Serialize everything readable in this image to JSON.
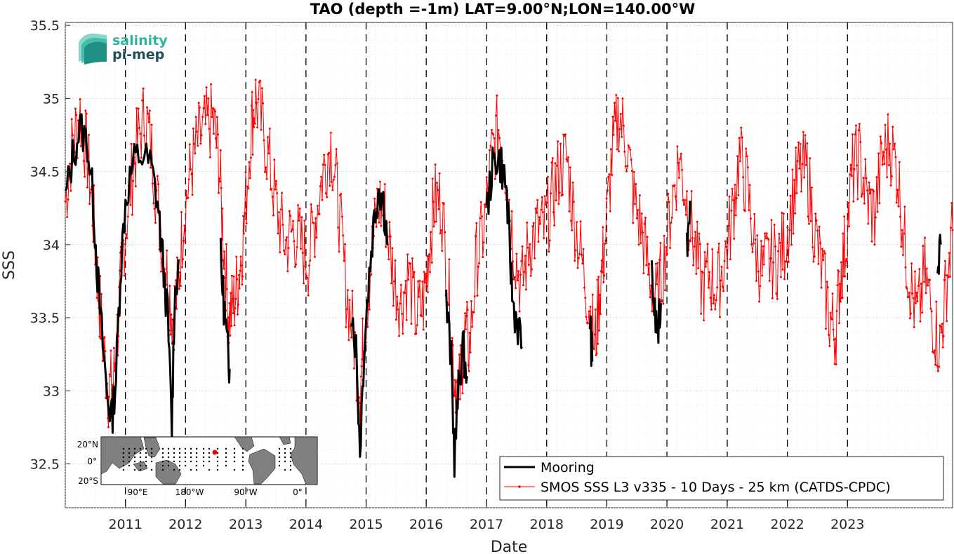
{
  "chart_data": {
    "type": "line",
    "title": "TAO (depth =-1m) LAT=9.00°N;LON=140.00°W",
    "xlabel": "Date",
    "ylabel": "SSS",
    "xlim": [
      "2010-01-01",
      "2024-09-30"
    ],
    "ylim": [
      32.2,
      35.52
    ],
    "yticks": [
      32.5,
      33,
      33.5,
      34,
      34.5,
      35,
      35.5
    ],
    "ytick_labels": [
      "32.5",
      "33",
      "33.5",
      "34",
      "34.5",
      "35",
      "35.5"
    ],
    "xticks": [
      "2011-01-01",
      "2012-01-01",
      "2013-01-01",
      "2014-01-01",
      "2015-01-01",
      "2016-01-01",
      "2017-01-01",
      "2018-01-01",
      "2019-01-01",
      "2020-01-01",
      "2021-01-01",
      "2022-01-01",
      "2023-01-01"
    ],
    "xtick_labels": [
      "2011",
      "2012",
      "2013",
      "2014",
      "2015",
      "2016",
      "2017",
      "2018",
      "2019",
      "2020",
      "2021",
      "2022",
      "2023"
    ],
    "year_dashed_lines": [
      "2011-01-01",
      "2012-01-01",
      "2013-01-01",
      "2014-01-01",
      "2015-01-01",
      "2016-01-01",
      "2017-01-01",
      "2018-01-01",
      "2019-01-01",
      "2020-01-01",
      "2021-01-01",
      "2022-01-01",
      "2023-01-01"
    ],
    "grid": true,
    "legend_position": "bottom-right",
    "series": [
      {
        "name": "Mooring",
        "color": "#000000",
        "style": "thick-line",
        "segments": [
          [
            [
              "2010-01-01",
              34.3
            ],
            [
              "2010-02-15",
              34.6
            ],
            [
              "2010-04-01",
              34.8
            ],
            [
              "2010-05-15",
              34.7
            ],
            [
              "2010-06-20",
              34.3
            ],
            [
              "2010-07-15",
              33.8
            ],
            [
              "2010-08-10",
              33.4
            ],
            [
              "2010-09-10",
              33.0
            ],
            [
              "2010-10-10",
              32.8
            ],
            [
              "2010-11-05",
              33.1
            ],
            [
              "2010-12-01",
              33.8
            ],
            [
              "2011-01-01",
              34.3
            ],
            [
              "2011-02-15",
              34.55
            ],
            [
              "2011-04-01",
              34.62
            ],
            [
              "2011-06-01",
              34.55
            ],
            [
              "2011-07-15",
              34.3
            ],
            [
              "2011-08-15",
              33.9
            ],
            [
              "2011-09-15",
              33.5
            ],
            [
              "2011-10-10",
              32.75
            ],
            [
              "2011-10-25",
              33.6
            ],
            [
              "2011-11-20",
              33.9
            ]
          ],
          [
            [
              "2012-08-01",
              33.9
            ],
            [
              "2012-08-20",
              33.6
            ],
            [
              "2012-09-10",
              33.3
            ],
            [
              "2012-09-25",
              33.15
            ]
          ],
          [
            [
              "2014-10-01",
              33.6
            ],
            [
              "2014-11-01",
              33.3
            ],
            [
              "2014-11-25",
              32.6
            ],
            [
              "2014-12-20",
              33.3
            ],
            [
              "2015-01-20",
              33.8
            ],
            [
              "2015-02-20",
              34.2
            ],
            [
              "2015-03-20",
              34.4
            ],
            [
              "2015-04-15",
              34.3
            ],
            [
              "2015-05-15",
              34.0
            ]
          ],
          [
            [
              "2016-05-01",
              33.6
            ],
            [
              "2016-06-01",
              33.2
            ],
            [
              "2016-06-20",
              32.55
            ],
            [
              "2016-07-15",
              33.0
            ],
            [
              "2016-08-10",
              33.3
            ],
            [
              "2016-09-05",
              33.1
            ]
          ],
          [
            [
              "2017-01-01",
              34.2
            ],
            [
              "2017-02-01",
              34.5
            ],
            [
              "2017-03-01",
              34.6
            ],
            [
              "2017-04-01",
              34.55
            ],
            [
              "2017-05-01",
              34.4
            ],
            [
              "2017-05-20",
              34.0
            ],
            [
              "2017-06-10",
              33.6
            ],
            [
              "2017-07-10",
              33.45
            ],
            [
              "2017-08-05",
              33.3
            ]
          ],
          [
            [
              "2018-09-20",
              33.5
            ],
            [
              "2018-10-05",
              33.2
            ]
          ],
          [
            [
              "2019-10-01",
              33.8
            ],
            [
              "2019-10-20",
              33.5
            ],
            [
              "2019-11-10",
              33.4
            ],
            [
              "2019-11-25",
              33.6
            ]
          ],
          [
            [
              "2020-05-01",
              34.0
            ],
            [
              "2020-05-20",
              34.3
            ]
          ],
          [
            [
              "2024-07-01",
              33.9
            ],
            [
              "2024-07-20",
              34.0
            ]
          ]
        ]
      },
      {
        "name": "SMOS SSS L3 v335 - 10 Days - 25 km (CATDS-CPDC)",
        "color": "#ff0000",
        "style": "thin-line-dots",
        "points": [
          [
            "2010-01-01",
            34.3
          ],
          [
            "2010-02-15",
            34.7
          ],
          [
            "2010-04-01",
            34.9
          ],
          [
            "2010-05-15",
            34.6
          ],
          [
            "2010-06-20",
            34.2
          ],
          [
            "2010-07-20",
            33.7
          ],
          [
            "2010-08-20",
            33.3
          ],
          [
            "2010-09-20",
            33.0
          ],
          [
            "2010-10-20",
            33.05
          ],
          [
            "2010-11-20",
            33.5
          ],
          [
            "2010-12-20",
            34.0
          ],
          [
            "2011-02-01",
            34.4
          ],
          [
            "2011-03-15",
            34.7
          ],
          [
            "2011-05-01",
            34.9
          ],
          [
            "2011-06-15",
            34.6
          ],
          [
            "2011-08-01",
            34.1
          ],
          [
            "2011-09-10",
            33.8
          ],
          [
            "2011-10-15",
            33.5
          ],
          [
            "2011-11-15",
            33.7
          ],
          [
            "2011-12-20",
            34.2
          ],
          [
            "2012-02-01",
            34.5
          ],
          [
            "2012-03-15",
            34.7
          ],
          [
            "2012-05-01",
            34.8
          ],
          [
            "2012-06-15",
            34.85
          ],
          [
            "2012-07-20",
            34.6
          ],
          [
            "2012-08-20",
            34.0
          ],
          [
            "2012-09-20",
            33.5
          ],
          [
            "2012-10-20",
            33.6
          ],
          [
            "2012-11-20",
            33.8
          ],
          [
            "2012-12-20",
            34.1
          ],
          [
            "2013-02-01",
            34.8
          ],
          [
            "2013-03-01",
            35.0
          ],
          [
            "2013-04-15",
            34.8
          ],
          [
            "2013-06-01",
            34.5
          ],
          [
            "2013-07-15",
            34.2
          ],
          [
            "2013-09-01",
            34.0
          ],
          [
            "2013-10-15",
            34.1
          ],
          [
            "2013-12-01",
            34.0
          ],
          [
            "2014-01-15",
            33.9
          ],
          [
            "2014-03-01",
            34.2
          ],
          [
            "2014-04-15",
            34.5
          ],
          [
            "2014-06-01",
            34.7
          ],
          [
            "2014-07-15",
            34.3
          ],
          [
            "2014-09-01",
            33.7
          ],
          [
            "2014-10-15",
            33.4
          ],
          [
            "2014-11-25",
            33.0
          ],
          [
            "2014-12-20",
            33.4
          ],
          [
            "2015-02-01",
            33.9
          ],
          [
            "2015-03-15",
            34.3
          ],
          [
            "2015-05-01",
            34.2
          ],
          [
            "2015-06-15",
            33.8
          ],
          [
            "2015-08-01",
            33.6
          ],
          [
            "2015-09-15",
            33.8
          ],
          [
            "2015-11-01",
            33.5
          ],
          [
            "2015-12-15",
            33.6
          ],
          [
            "2016-01-20",
            34.0
          ],
          [
            "2016-02-20",
            34.3
          ],
          [
            "2016-04-01",
            34.3
          ],
          [
            "2016-05-15",
            33.7
          ],
          [
            "2016-06-20",
            33.1
          ],
          [
            "2016-07-20",
            33.0
          ],
          [
            "2016-08-20",
            33.4
          ],
          [
            "2016-09-20",
            33.3
          ],
          [
            "2016-11-01",
            33.9
          ],
          [
            "2016-12-15",
            34.1
          ],
          [
            "2017-02-01",
            34.6
          ],
          [
            "2017-03-15",
            34.8
          ],
          [
            "2017-05-01",
            34.5
          ],
          [
            "2017-06-15",
            34.0
          ],
          [
            "2017-08-01",
            33.7
          ],
          [
            "2017-09-15",
            34.0
          ],
          [
            "2017-11-01",
            34.1
          ],
          [
            "2017-12-15",
            34.1
          ],
          [
            "2018-02-01",
            34.3
          ],
          [
            "2018-03-15",
            34.5
          ],
          [
            "2018-05-01",
            34.6
          ],
          [
            "2018-06-15",
            34.2
          ],
          [
            "2018-08-01",
            33.9
          ],
          [
            "2018-09-15",
            33.6
          ],
          [
            "2018-10-20",
            33.3
          ],
          [
            "2018-11-20",
            33.7
          ],
          [
            "2018-12-20",
            34.0
          ],
          [
            "2019-02-01",
            34.6
          ],
          [
            "2019-03-15",
            34.9
          ],
          [
            "2019-05-01",
            34.7
          ],
          [
            "2019-06-15",
            34.3
          ],
          [
            "2019-08-01",
            34.1
          ],
          [
            "2019-09-15",
            33.8
          ],
          [
            "2019-11-01",
            33.6
          ],
          [
            "2019-12-15",
            33.9
          ],
          [
            "2020-02-01",
            34.3
          ],
          [
            "2020-03-15",
            34.6
          ],
          [
            "2020-05-01",
            34.3
          ],
          [
            "2020-06-15",
            34.0
          ],
          [
            "2020-08-01",
            33.7
          ],
          [
            "2020-09-15",
            33.8
          ],
          [
            "2020-11-01",
            33.7
          ],
          [
            "2020-12-15",
            33.9
          ],
          [
            "2021-02-01",
            34.2
          ],
          [
            "2021-03-15",
            34.6
          ],
          [
            "2021-05-01",
            34.4
          ],
          [
            "2021-06-15",
            34.0
          ],
          [
            "2021-08-01",
            33.8
          ],
          [
            "2021-09-15",
            33.9
          ],
          [
            "2021-11-01",
            33.9
          ],
          [
            "2021-12-15",
            34.0
          ],
          [
            "2022-02-01",
            34.3
          ],
          [
            "2022-03-15",
            34.5
          ],
          [
            "2022-05-01",
            34.5
          ],
          [
            "2022-06-15",
            34.1
          ],
          [
            "2022-08-01",
            33.8
          ],
          [
            "2022-09-15",
            33.5
          ],
          [
            "2022-10-20",
            33.4
          ],
          [
            "2022-11-20",
            33.8
          ],
          [
            "2022-12-20",
            34.0
          ],
          [
            "2023-02-01",
            34.5
          ],
          [
            "2023-03-15",
            34.6
          ],
          [
            "2023-05-01",
            34.3
          ],
          [
            "2023-06-15",
            34.2
          ],
          [
            "2023-08-01",
            34.6
          ],
          [
            "2023-09-15",
            34.7
          ],
          [
            "2023-11-01",
            34.5
          ],
          [
            "2023-12-15",
            34.0
          ],
          [
            "2024-01-20",
            33.7
          ],
          [
            "2024-03-01",
            33.5
          ],
          [
            "2024-04-15",
            33.8
          ],
          [
            "2024-06-01",
            33.5
          ],
          [
            "2024-07-15",
            33.3
          ],
          [
            "2024-08-20",
            33.7
          ],
          [
            "2024-09-30",
            34.1
          ]
        ]
      }
    ]
  },
  "legend": {
    "items": [
      {
        "label": "Mooring",
        "color": "#000000"
      },
      {
        "label": "SMOS SSS L3 v335 - 10 Days - 25 km (CATDS-CPDC)",
        "color": "#ff0000"
      }
    ]
  },
  "logo": {
    "line1": "salinity",
    "line2": "pi-mep",
    "color1": "#2ab5a0",
    "color2": "#1f4e5a"
  },
  "inset_map": {
    "lat_labels": [
      "20°N",
      "0°",
      "20°S"
    ],
    "lon_labels": [
      "90°E",
      "180°W",
      "90°W",
      "0°"
    ],
    "marker_color": "#ff0000",
    "land_color": "#808080"
  }
}
